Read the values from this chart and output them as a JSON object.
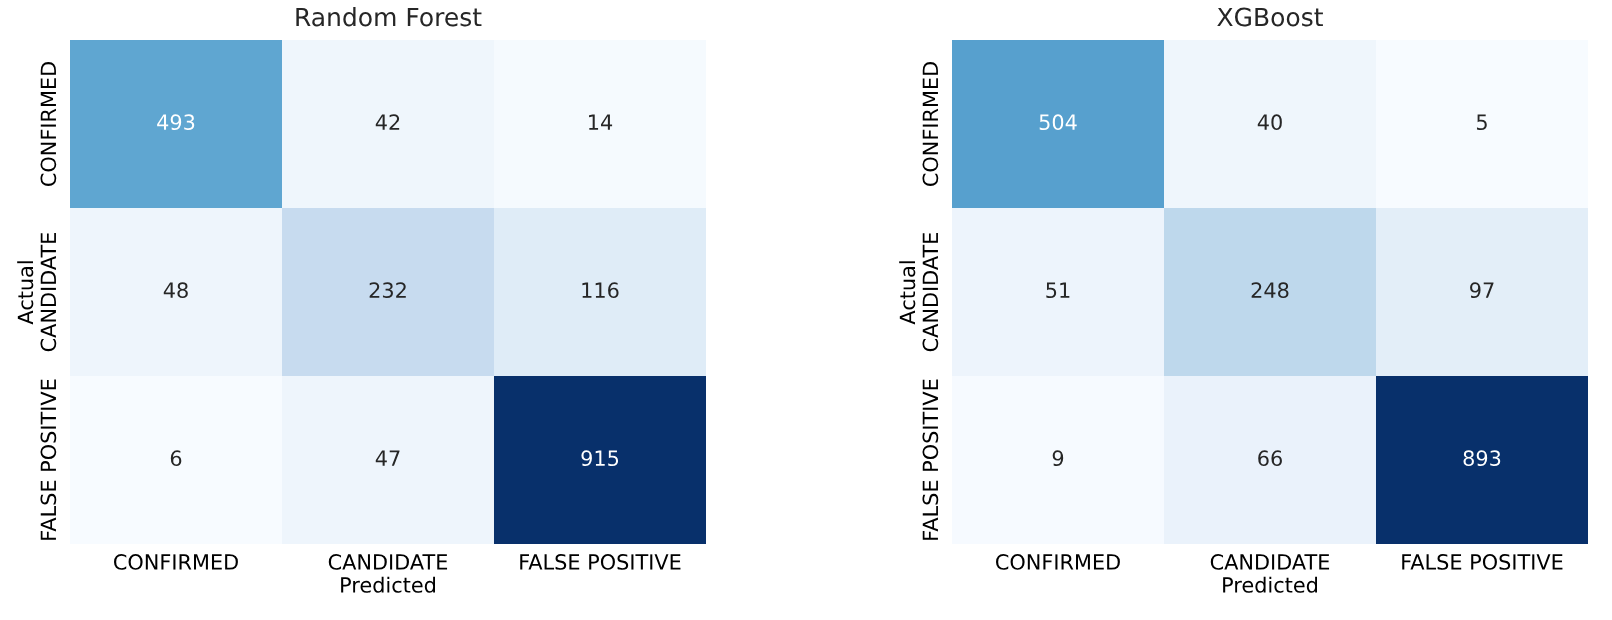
{
  "chart_data": [
    {
      "type": "heatmap",
      "title": "Random Forest",
      "xlabel": "Predicted",
      "ylabel": "Actual",
      "categories": [
        "CONFIRMED",
        "CANDIDATE",
        "FALSE POSITIVE"
      ],
      "y_categories": [
        "CONFIRMED",
        "CANDIDATE",
        "FALSE POSITIVE"
      ],
      "cells": [
        [
          493,
          42,
          14
        ],
        [
          48,
          232,
          116
        ],
        [
          6,
          47,
          915
        ]
      ],
      "data_labels": true
    },
    {
      "type": "heatmap",
      "title": "XGBoost",
      "xlabel": "Predicted",
      "ylabel": "Actual",
      "categories": [
        "CONFIRMED",
        "CANDIDATE",
        "FALSE POSITIVE"
      ],
      "y_categories": [
        "CONFIRMED",
        "CANDIDATE",
        "FALSE POSITIVE"
      ],
      "cells": [
        [
          504,
          40,
          5
        ],
        [
          51,
          248,
          97
        ],
        [
          9,
          66,
          893
        ]
      ],
      "data_labels": true
    }
  ]
}
